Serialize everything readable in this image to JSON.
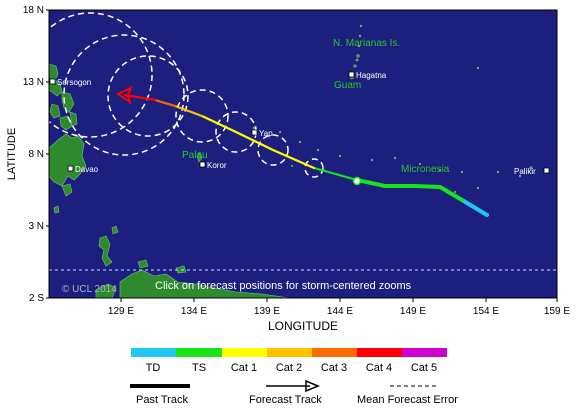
{
  "map": {
    "ylabel": "LATITUDE",
    "xlabel": "LONGITUDE",
    "x_ticks": [
      "129 E",
      "134 E",
      "139 E",
      "144 E",
      "149 E",
      "154 E",
      "159 E"
    ],
    "y_ticks": [
      "18 N",
      "13 N",
      "8 N",
      "3 N",
      "2 S"
    ],
    "copyright": "© UCL 2014",
    "hint": "Click on forecast positions for storm-centered zooms",
    "colors": {
      "ocean": "#1c1f7e",
      "land": "#2f8a2f",
      "label_green": "#28c828",
      "track_gray": "#5a5a5a"
    }
  },
  "places": [
    {
      "name": "N. Marianas Is.",
      "kind": "region"
    },
    {
      "name": "Sorsogon",
      "kind": "city"
    },
    {
      "name": "Hagatna",
      "kind": "city"
    },
    {
      "name": "Guam",
      "kind": "region"
    },
    {
      "name": "Yap",
      "kind": "city"
    },
    {
      "name": "Palau",
      "kind": "region"
    },
    {
      "name": "Koror",
      "kind": "city"
    },
    {
      "name": "Davao",
      "kind": "city"
    },
    {
      "name": "Micronesia",
      "kind": "region"
    },
    {
      "name": "Palikir",
      "kind": "city"
    }
  ],
  "legend": {
    "categories": [
      {
        "label": "TD",
        "color": "#1ec8f0"
      },
      {
        "label": "TS",
        "color": "#18e418"
      },
      {
        "label": "Cat 1",
        "color": "#ffff00"
      },
      {
        "label": "Cat 2",
        "color": "#ffc200"
      },
      {
        "label": "Cat 3",
        "color": "#ff6a00"
      },
      {
        "label": "Cat 4",
        "color": "#ff0000"
      },
      {
        "label": "Cat 5",
        "color": "#d000d0"
      }
    ],
    "past_track": "Past Track",
    "forecast_track": "Forecast Track",
    "mean_error": "Mean Forecast Error"
  }
}
